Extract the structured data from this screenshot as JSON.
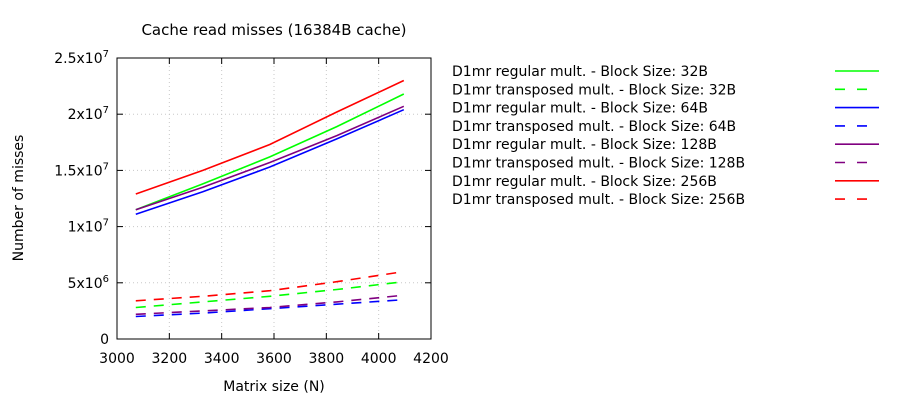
{
  "chart_data": {
    "type": "line",
    "title": "Cache read misses (16384B cache)",
    "xlabel": "Matrix size (N)",
    "ylabel": "Number of misses",
    "xlim": [
      3000,
      4200
    ],
    "ylim": [
      0,
      25000000
    ],
    "x_ticks": [
      "3000",
      "3200",
      "3400",
      "3600",
      "3800",
      "4000",
      "4200"
    ],
    "x_tick_values": [
      3000,
      3200,
      3400,
      3600,
      3800,
      4000,
      4200
    ],
    "y_ticks": [
      {
        "value": 0,
        "base": "0",
        "exp": ""
      },
      {
        "value": 5000000,
        "base": "5x10",
        "exp": "6"
      },
      {
        "value": 10000000,
        "base": "1x10",
        "exp": "7"
      },
      {
        "value": 15000000,
        "base": "1.5x10",
        "exp": "7"
      },
      {
        "value": 20000000,
        "base": "2x10",
        "exp": "7"
      },
      {
        "value": 25000000,
        "base": "2.5x10",
        "exp": "7"
      }
    ],
    "grid": true,
    "legend_position": "right",
    "x": [
      3072,
      3328,
      3584,
      3840,
      4096
    ],
    "series": [
      {
        "name": "D1mr regular mult. - Block Size: 32B",
        "color": "#00ff00",
        "dash": "solid",
        "values": [
          11500000,
          13800000,
          16200000,
          18900000,
          21800000
        ]
      },
      {
        "name": "D1mr transposed mult. - Block Size: 32B",
        "color": "#00ff00",
        "dash": "dashed",
        "values": [
          2800000,
          3300000,
          3800000,
          4400000,
          5100000
        ]
      },
      {
        "name": "D1mr regular mult. - Block Size: 64B",
        "color": "#0000ff",
        "dash": "solid",
        "values": [
          11100000,
          13100000,
          15300000,
          17800000,
          20400000
        ]
      },
      {
        "name": "D1mr transposed mult. - Block Size: 64B",
        "color": "#0000ff",
        "dash": "dashed",
        "values": [
          2000000,
          2300000,
          2700000,
          3100000,
          3500000
        ]
      },
      {
        "name": "D1mr regular mult. - Block Size: 128B",
        "color": "#800080",
        "dash": "solid",
        "values": [
          11500000,
          13500000,
          15700000,
          18100000,
          20700000
        ]
      },
      {
        "name": "D1mr transposed mult. - Block Size: 128B",
        "color": "#800080",
        "dash": "dashed",
        "values": [
          2200000,
          2500000,
          2800000,
          3300000,
          3900000
        ]
      },
      {
        "name": "D1mr regular mult. - Block Size: 256B",
        "color": "#ff0000",
        "dash": "solid",
        "values": [
          12900000,
          15000000,
          17300000,
          20200000,
          23000000
        ]
      },
      {
        "name": "D1mr transposed mult. - Block Size: 256B",
        "color": "#ff0000",
        "dash": "dashed",
        "values": [
          3400000,
          3800000,
          4300000,
          5100000,
          6000000
        ]
      }
    ]
  }
}
